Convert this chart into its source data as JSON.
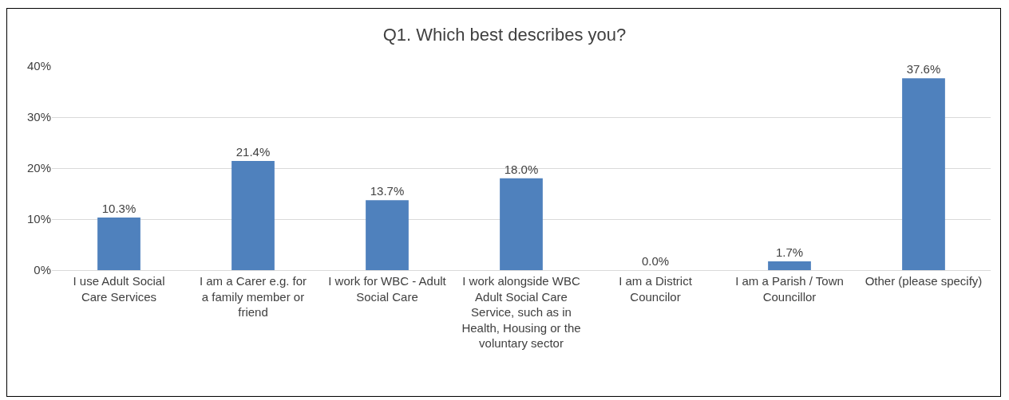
{
  "chart_data": {
    "type": "bar",
    "title": "Q1. Which best describes you?",
    "categories": [
      "I use Adult Social Care Services",
      "I am a Carer e.g. for a family member or friend",
      "I work for WBC - Adult Social Care",
      "I work alongside WBC Adult Social Care Service, such as in Health, Housing or the voluntary sector",
      "I am a District Councilor",
      "I am a Parish / Town Councillor",
      "Other (please specify)"
    ],
    "values": [
      10.3,
      21.4,
      13.7,
      18.0,
      0.0,
      1.7,
      37.6
    ],
    "value_labels": [
      "10.3%",
      "21.4%",
      "13.7%",
      "18.0%",
      "0.0%",
      "1.7%",
      "37.6%"
    ],
    "color": "#4f81bd",
    "ylim": [
      0,
      40
    ],
    "yticks": [
      {
        "value": 0,
        "label": "0%"
      },
      {
        "value": 10,
        "label": "10%"
      },
      {
        "value": 20,
        "label": "20%"
      },
      {
        "value": 30,
        "label": "30%"
      },
      {
        "value": 40,
        "label": "40%"
      }
    ],
    "grid": "y"
  }
}
